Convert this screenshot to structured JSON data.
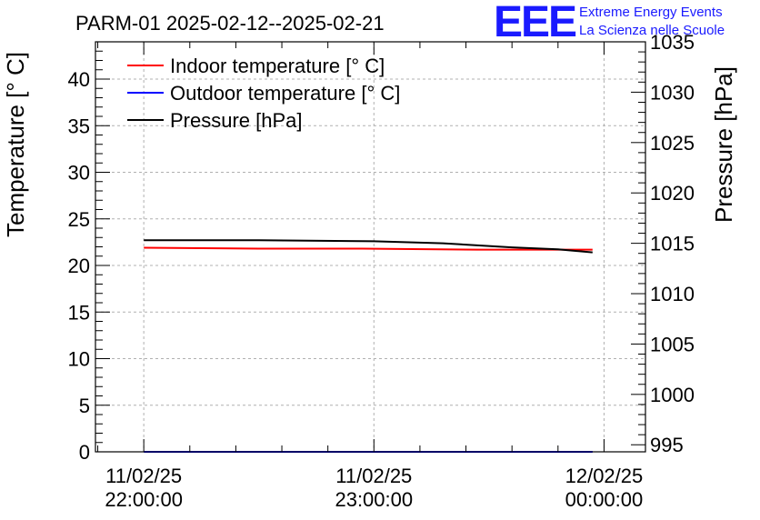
{
  "chart_data": {
    "type": "line",
    "title": "PARM-01 2025-02-12--2025-02-21",
    "ylabel": "Temperature [° C]",
    "y2label": "Pressure [hPa]",
    "ylim": [
      0,
      44
    ],
    "y2lim": [
      994.3,
      1035
    ],
    "yticks": [
      0,
      5,
      10,
      15,
      20,
      25,
      30,
      35,
      40
    ],
    "y2ticks": [
      995,
      1000,
      1005,
      1010,
      1015,
      1020,
      1025,
      1030,
      1035
    ],
    "xlim": [
      -0.21,
      2.18
    ],
    "xticks": [
      {
        "x": 0,
        "line1": "11/02/25",
        "line2": "22:00:00"
      },
      {
        "x": 1,
        "line1": "11/02/25",
        "line2": "23:00:00"
      },
      {
        "x": 2,
        "line1": "12/02/25",
        "line2": "00:00:00"
      }
    ],
    "grid": true,
    "legend_position": "top-left",
    "series": [
      {
        "name": "Indoor temperature [° C]",
        "color": "#ff0000",
        "axis": "left",
        "x": [
          0,
          0.5,
          0.95,
          1.45,
          1.95
        ],
        "values": [
          21.9,
          21.8,
          21.8,
          21.7,
          21.7
        ]
      },
      {
        "name": "Outdoor temperature [° C]",
        "color": "#0000ff",
        "axis": "left",
        "x": [
          0,
          1,
          1.95
        ],
        "values": [
          0,
          0,
          0
        ]
      },
      {
        "name": "Pressure [hPa]",
        "color": "#000000",
        "axis": "right",
        "x": [
          0,
          0.5,
          1.0,
          1.3,
          1.6,
          1.8,
          1.95
        ],
        "values": [
          1015.3,
          1015.3,
          1015.2,
          1015.0,
          1014.6,
          1014.4,
          1014.1
        ]
      }
    ]
  },
  "branding": {
    "logo": "EEE",
    "org_line1": "Extreme Energy Events",
    "org_line2": "La Scienza nelle Scuole",
    "logo_color": "#1a1aff"
  }
}
